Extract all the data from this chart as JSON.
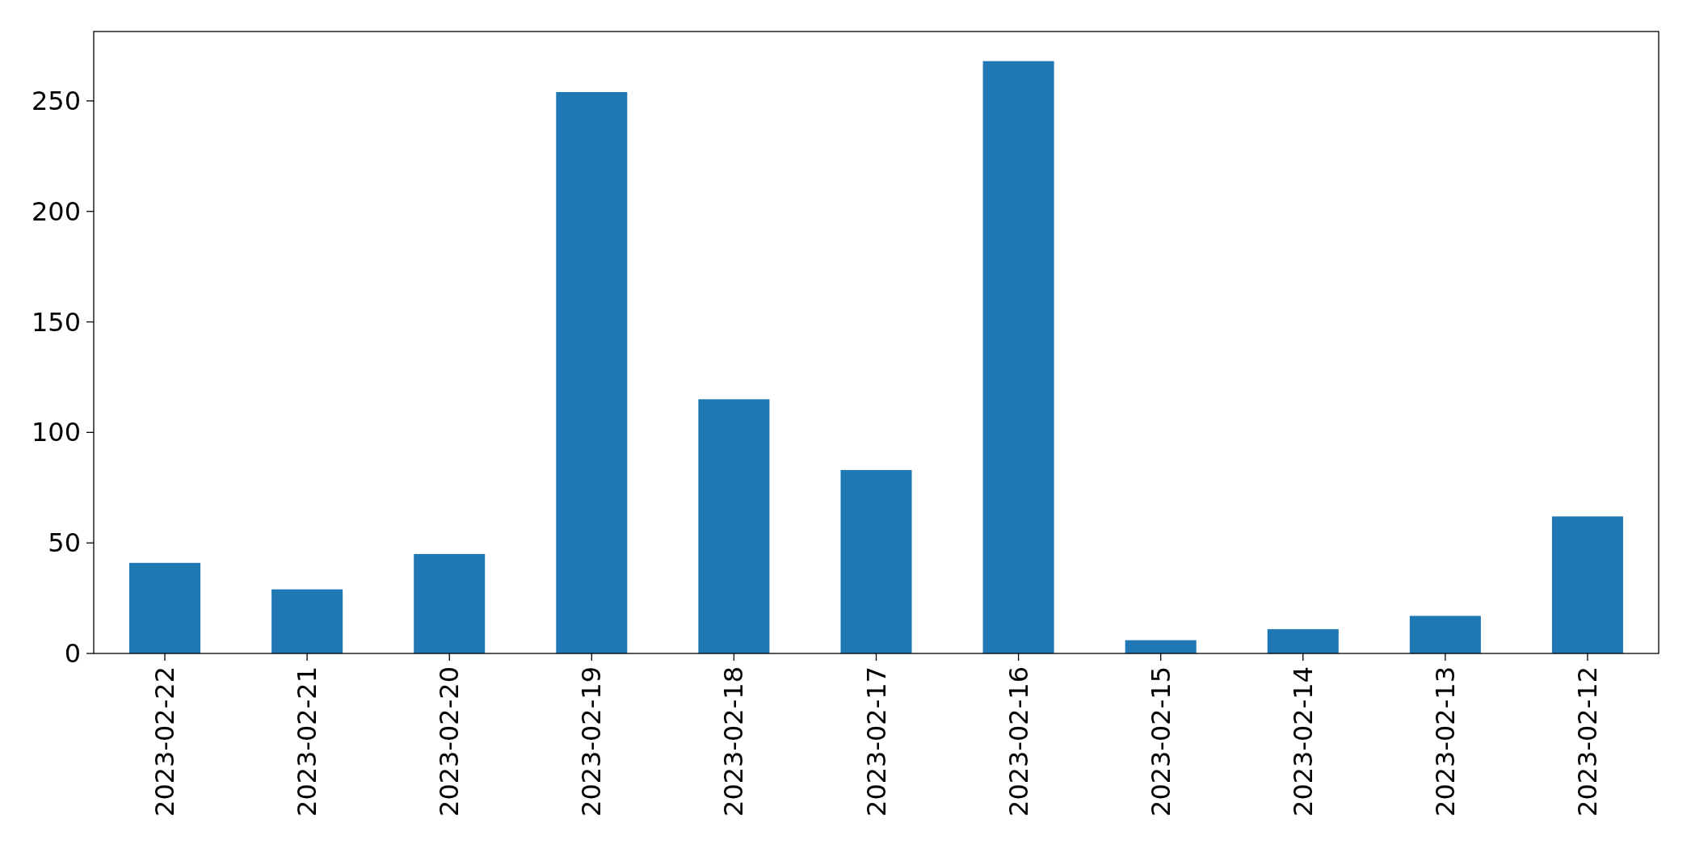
{
  "chart_data": {
    "type": "bar",
    "categories": [
      "2023-02-22",
      "2023-02-21",
      "2023-02-20",
      "2023-02-19",
      "2023-02-18",
      "2023-02-17",
      "2023-02-16",
      "2023-02-15",
      "2023-02-14",
      "2023-02-13",
      "2023-02-12"
    ],
    "values": [
      41,
      29,
      45,
      254,
      115,
      83,
      268,
      6,
      11,
      17,
      62
    ],
    "color": "#1f77b4",
    "ylim": [
      0,
      281.4
    ],
    "yticks": [
      0,
      50,
      100,
      150,
      200,
      250
    ]
  }
}
